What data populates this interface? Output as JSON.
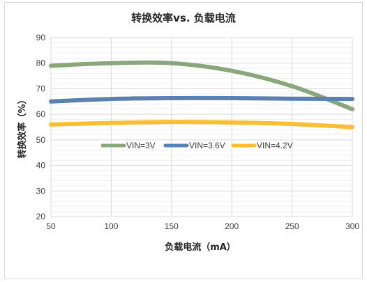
{
  "chart_data": {
    "type": "line",
    "title": "转换效率vs. 负载电流",
    "xlabel": "负载电流（mA）",
    "ylabel": "转换效率（%）",
    "x": [
      50,
      100,
      150,
      200,
      250,
      300
    ],
    "xlim": [
      50,
      300
    ],
    "ylim": [
      20,
      90
    ],
    "xticks": [
      50,
      100,
      150,
      200,
      250,
      300
    ],
    "yticks": [
      20,
      30,
      40,
      50,
      60,
      70,
      80,
      90
    ],
    "grid": true,
    "legend_position": "middle-left",
    "series": [
      {
        "name": "VIN=3V",
        "color": "#8aa77b",
        "values": [
          79,
          80,
          80,
          77,
          71,
          62
        ]
      },
      {
        "name": "VIN=3.6V",
        "color": "#5b80b2",
        "values": [
          65,
          66,
          66.3,
          66.3,
          66.1,
          66
        ]
      },
      {
        "name": "VIN=4.2V",
        "color": "#fbbd32",
        "values": [
          56,
          56.6,
          57,
          56.8,
          56.2,
          55
        ]
      }
    ]
  }
}
